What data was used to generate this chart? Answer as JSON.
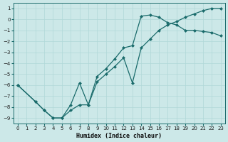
{
  "xlabel": "Humidex (Indice chaleur)",
  "xlim": [
    -0.5,
    23.5
  ],
  "ylim": [
    -9.5,
    1.5
  ],
  "yticks": [
    1,
    0,
    -1,
    -2,
    -3,
    -4,
    -5,
    -6,
    -7,
    -8,
    -9
  ],
  "xticks": [
    0,
    1,
    2,
    3,
    4,
    5,
    6,
    7,
    8,
    9,
    10,
    11,
    12,
    13,
    14,
    15,
    16,
    17,
    18,
    19,
    20,
    21,
    22,
    23
  ],
  "bg_color": "#cce8e8",
  "line_color": "#1a6b6b",
  "grid_color": "#b0d8d8",
  "line1_x": [
    0,
    2,
    3,
    4,
    5,
    6,
    7,
    8,
    9,
    10,
    11,
    12,
    13,
    14,
    15,
    16,
    17,
    18,
    19,
    20,
    21,
    22,
    23
  ],
  "line1_y": [
    -6,
    -7.5,
    -8.3,
    -9.0,
    -9.0,
    -8.3,
    -7.8,
    -7.8,
    -5.7,
    -5.0,
    -4.3,
    -3.5,
    -5.8,
    -2.6,
    -1.8,
    -1.0,
    -0.5,
    -0.2,
    0.2,
    0.5,
    0.8,
    1.0,
    1.0
  ],
  "line2_x": [
    0,
    2,
    3,
    4,
    5,
    6,
    7,
    8,
    9,
    10,
    11,
    12,
    13,
    14,
    15,
    16,
    17,
    18,
    19,
    20,
    21,
    22,
    23
  ],
  "line2_y": [
    -6,
    -7.5,
    -8.3,
    -9.0,
    -9.0,
    -7.8,
    -5.8,
    -7.8,
    -5.2,
    -4.5,
    -3.6,
    -2.6,
    -2.4,
    0.3,
    0.4,
    0.2,
    -0.3,
    -0.5,
    -1.0,
    -1.0,
    -1.1,
    -1.2,
    -1.5
  ]
}
